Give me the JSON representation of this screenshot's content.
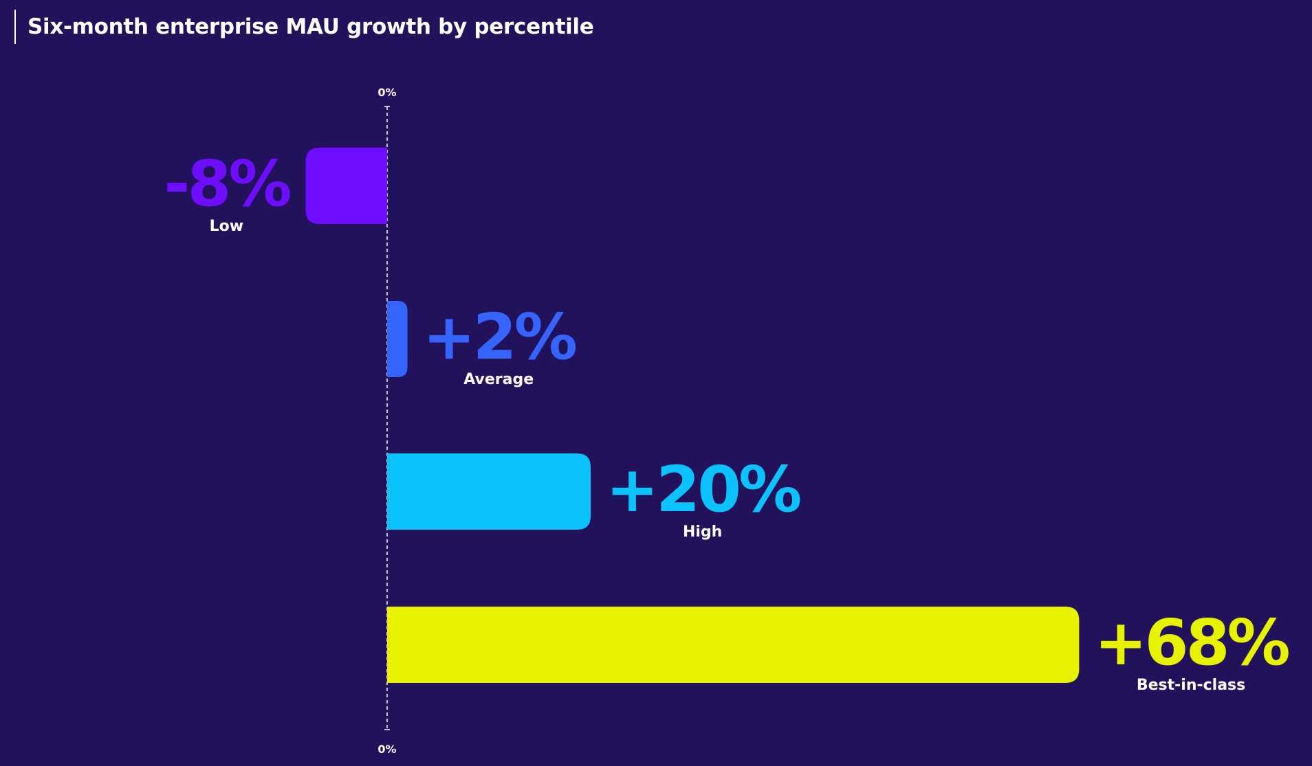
{
  "chart_data": {
    "type": "bar",
    "orientation": "horizontal",
    "title": "Six-month enterprise MAU growth by percentile",
    "categories": [
      "Low",
      "Average",
      "High",
      "Best-in-class"
    ],
    "values": [
      -8,
      2,
      20,
      68
    ],
    "value_labels": [
      "-8%",
      "+2%",
      "+20%",
      "+68%"
    ],
    "colors": [
      "#6e0dff",
      "#3564ff",
      "#0bc2fc",
      "#e6f200"
    ],
    "axis_top_label": "0%",
    "axis_bottom_label": "0%",
    "xlim": [
      -8,
      68
    ],
    "grid": false,
    "legend": "none"
  }
}
